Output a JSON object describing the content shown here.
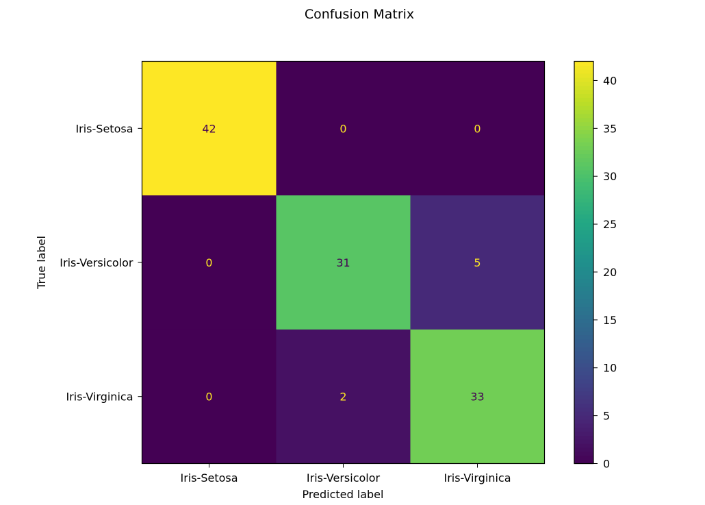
{
  "chart_data": {
    "type": "heatmap",
    "title": "Confusion Matrix",
    "xlabel": "Predicted label",
    "ylabel": "True label",
    "x_categories": [
      "Iris-Setosa",
      "Iris-Versicolor",
      "Iris-Virginica"
    ],
    "y_categories": [
      "Iris-Setosa",
      "Iris-Versicolor",
      "Iris-Virginica"
    ],
    "values": [
      [
        42,
        0,
        0
      ],
      [
        0,
        31,
        5
      ],
      [
        0,
        2,
        33
      ]
    ],
    "colormap": "viridis",
    "colorbar": {
      "range": [
        0,
        42
      ],
      "ticks": [
        0,
        5,
        10,
        15,
        20,
        25,
        30,
        35,
        40
      ]
    },
    "colors": {
      "low_text": "#fde725",
      "high_text": "#440154"
    }
  }
}
